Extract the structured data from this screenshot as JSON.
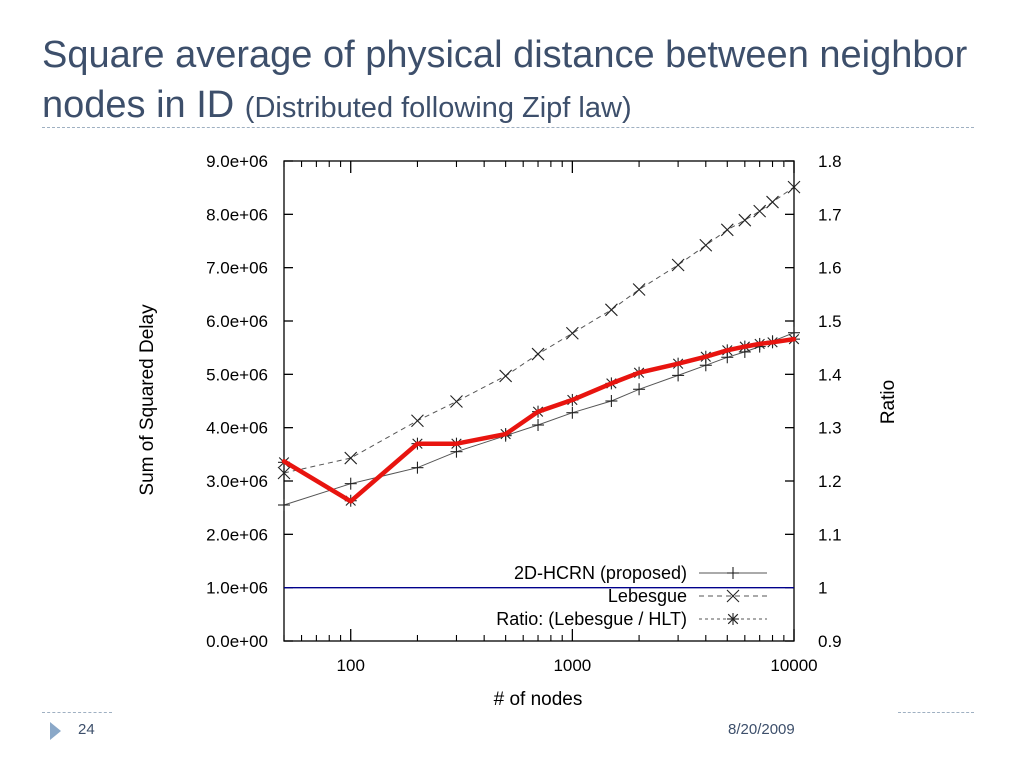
{
  "slide": {
    "title_main": "Square average of physical distance between neighbor nodes in ID",
    "title_sub": "(Distributed following Zipf law)",
    "page_number": "24",
    "date": "8/20/2009"
  },
  "colors": {
    "title": "#3d4f6b",
    "ratio_line": "#e8140f",
    "reference_line": "#00008b",
    "series_gray": "#555555",
    "accent_triangle": "#8aa8c8"
  },
  "icons": {
    "bullet": "triangle-bullet-icon"
  },
  "chart_data": {
    "type": "line",
    "xlabel": "# of nodes",
    "ylabel": "Sum of Squared Delay",
    "y2label": "Ratio",
    "xscale": "log",
    "xlim": [
      50,
      10000
    ],
    "ylim": [
      0,
      9000000
    ],
    "y2lim": [
      0.9,
      1.8
    ],
    "xticks": [
      "100",
      "1000",
      "10000"
    ],
    "yticks": [
      "0.0e+00",
      "1.0e+06",
      "2.0e+06",
      "3.0e+06",
      "4.0e+06",
      "5.0e+06",
      "6.0e+06",
      "7.0e+06",
      "8.0e+06",
      "9.0e+06"
    ],
    "y2ticks": [
      "0.9",
      "1",
      "1.1",
      "1.2",
      "1.3",
      "1.4",
      "1.5",
      "1.6",
      "1.7",
      "1.8"
    ],
    "legend_position": "bottom-right",
    "grid": false,
    "series": [
      {
        "name": "2D-HCRN (proposed)",
        "axis": "left",
        "marker": "plus",
        "line": "solid",
        "x": [
          50,
          100,
          200,
          300,
          500,
          700,
          1000,
          1500,
          2000,
          3000,
          4000,
          5000,
          6000,
          7000,
          8000,
          10000
        ],
        "y": [
          2550000,
          2950000,
          3250000,
          3550000,
          3850000,
          4050000,
          4280000,
          4500000,
          4720000,
          4980000,
          5170000,
          5320000,
          5420000,
          5520000,
          5620000,
          5780000
        ]
      },
      {
        "name": "Lebesgue",
        "axis": "left",
        "marker": "x",
        "line": "dashed",
        "x": [
          50,
          100,
          200,
          300,
          500,
          700,
          1000,
          1500,
          2000,
          3000,
          4000,
          5000,
          6000,
          7000,
          8000,
          10000
        ],
        "y": [
          3150000,
          3430000,
          4130000,
          4490000,
          4970000,
          5380000,
          5770000,
          6210000,
          6590000,
          7050000,
          7420000,
          7710000,
          7890000,
          8060000,
          8230000,
          8510000
        ]
      },
      {
        "name": "Ratio: (Lebesgue / HLT)",
        "axis": "right",
        "marker": "star",
        "line": "dotted",
        "x": [
          50,
          100,
          200,
          300,
          500,
          700,
          1000,
          1500,
          2000,
          3000,
          4000,
          5000,
          6000,
          7000,
          8000,
          10000
        ],
        "y": [
          1.235,
          1.163,
          1.27,
          1.27,
          1.288,
          1.33,
          1.352,
          1.383,
          1.403,
          1.42,
          1.433,
          1.445,
          1.452,
          1.457,
          1.46,
          1.466
        ]
      }
    ],
    "highlight_line": {
      "x": [
        50,
        100,
        200,
        300,
        500,
        700,
        1000,
        1500,
        2000,
        3000,
        4000,
        5000,
        6000,
        7000,
        8000,
        10000
      ],
      "y": [
        1.237,
        1.162,
        1.27,
        1.27,
        1.288,
        1.33,
        1.352,
        1.383,
        1.403,
        1.42,
        1.433,
        1.445,
        1.452,
        1.457,
        1.46,
        1.466
      ]
    },
    "reference_line": {
      "axis": "right",
      "y": 1.0
    }
  }
}
